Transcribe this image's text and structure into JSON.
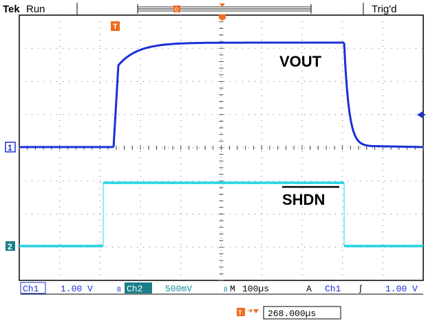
{
  "header": {
    "brand": "Tek",
    "run_state": "Run",
    "trigger_status": "Trig'd",
    "record_marker": "0"
  },
  "trigger_marker": "T",
  "channels": {
    "ch1": {
      "marker": "1",
      "color": "#1a2fd6"
    },
    "ch2": {
      "marker": "2",
      "color": "#22d3e6"
    }
  },
  "annotations": {
    "vout": "VOUT",
    "shdn": "SHDN"
  },
  "status_bar": {
    "ch1_label": "Ch1",
    "ch1_scale": "1.00 V",
    "ch2_label": "Ch2",
    "ch2_scale": "500mV",
    "timebase_label": "M",
    "timebase": "100µs",
    "trigger_mode": "A",
    "trigger_source": "Ch1",
    "trigger_slope": "ʃ",
    "trigger_level": "1.00 V"
  },
  "trigger_position": {
    "label": "T",
    "value": "268.000µs"
  }
}
